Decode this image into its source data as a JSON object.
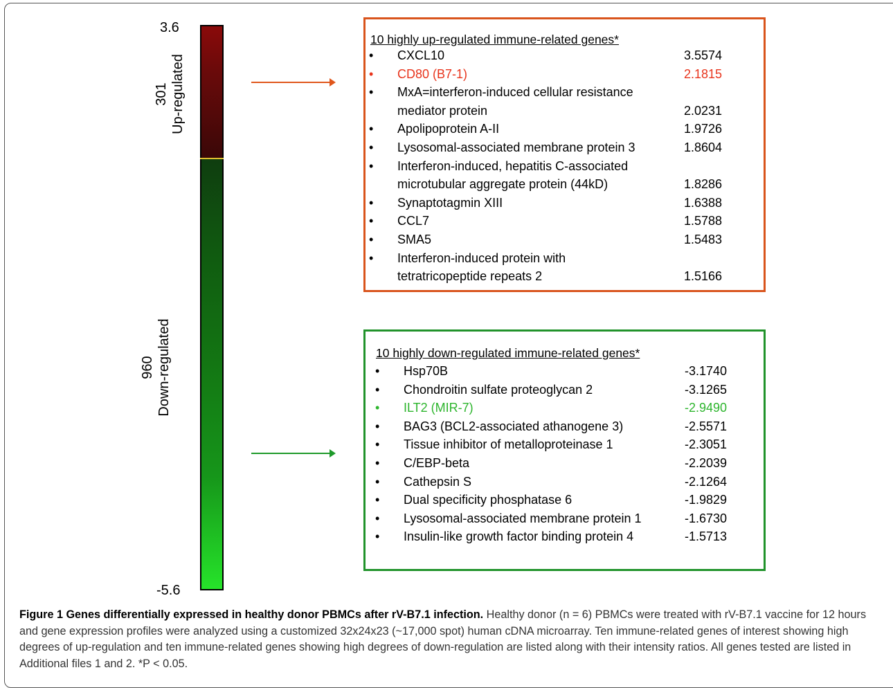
{
  "chart_data": {
    "type": "heatmap",
    "scale": {
      "top": "3.6",
      "bottom": "-5.6"
    },
    "up_group": {
      "count": "301",
      "label": "Up-regulated"
    },
    "down_group": {
      "count": "960",
      "label": "Down-regulated"
    },
    "up_box": {
      "title": "10 highly up-regulated immune-related genes*",
      "items": [
        {
          "lines": [
            "CXCL10"
          ],
          "value": "3.5574"
        },
        {
          "lines": [
            "CD80 (B7-1)"
          ],
          "value": "2.1815",
          "highlight": true
        },
        {
          "lines": [
            "MxA=interferon-induced cellular resistance",
            "mediator protein"
          ],
          "value": "2.0231"
        },
        {
          "lines": [
            "Apolipoprotein A-II"
          ],
          "value": "1.9726"
        },
        {
          "lines": [
            "Lysosomal-associated membrane protein 3"
          ],
          "value": "1.8604"
        },
        {
          "lines": [
            "Interferon-induced, hepatitis C-associated",
            "microtubular aggregate protein (44kD)"
          ],
          "value": "1.8286"
        },
        {
          "lines": [
            "Synaptotagmin XIII"
          ],
          "value": "1.6388"
        },
        {
          "lines": [
            "CCL7"
          ],
          "value": "1.5788"
        },
        {
          "lines": [
            "SMA5"
          ],
          "value": "1.5483"
        },
        {
          "lines": [
            "Interferon-induced protein with",
            "tetratricopeptide repeats 2"
          ],
          "value": "1.5166"
        }
      ]
    },
    "down_box": {
      "title": "10 highly down-regulated immune-related genes*",
      "items": [
        {
          "lines": [
            "Hsp70B"
          ],
          "value": "-3.1740"
        },
        {
          "lines": [
            "Chondroitin sulfate proteoglycan 2"
          ],
          "value": "-3.1265"
        },
        {
          "lines": [
            "ILT2 (MIR-7)"
          ],
          "value": "-2.9490",
          "highlight": true
        },
        {
          "lines": [
            "BAG3 (BCL2-associated athanogene 3)"
          ],
          "value": "-2.5571"
        },
        {
          "lines": [
            "Tissue inhibitor of metalloproteinase 1"
          ],
          "value": "-2.3051"
        },
        {
          "lines": [
            "C/EBP-beta"
          ],
          "value": "-2.2039"
        },
        {
          "lines": [
            "Cathepsin S"
          ],
          "value": "-2.1264"
        },
        {
          "lines": [
            "Dual specificity phosphatase 6"
          ],
          "value": "-1.9829"
        },
        {
          "lines": [
            "Lysosomal-associated membrane protein 1"
          ],
          "value": "-1.6730"
        },
        {
          "lines": [
            "Insulin-like growth factor binding protein 4"
          ],
          "value": "-1.5713"
        }
      ]
    },
    "colors": {
      "up": "#d9541c",
      "down": "#21932b",
      "up_highlight": "#e8341c",
      "down_highlight": "#2db52d"
    }
  },
  "caption": {
    "bold": "Figure 1 Genes differentially expressed in healthy donor PBMCs after rV-B7.1 infection.",
    "text": " Healthy donor (n = 6) PBMCs were treated with rV-B7.1 vaccine for 12 hours and gene expression profiles were analyzed using a customized 32x24x23 (~17,000 spot) human cDNA microarray. Ten immune-related genes of interest showing high degrees of up-regulation and ten immune-related genes showing high degrees of down-regulation are listed along with their intensity ratios. All genes tested are listed in Additional files 1 and 2. *P < 0.05."
  }
}
